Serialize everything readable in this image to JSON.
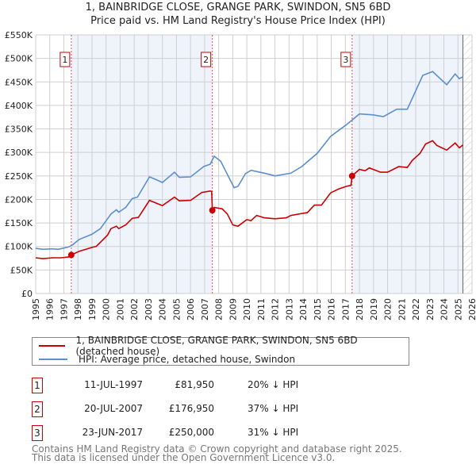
{
  "title_line1": "1, BAINBRIDGE CLOSE, GRANGE PARK, SWINDON, SN5 6BD",
  "title_line2": "Price paid vs. HM Land Registry's House Price Index (HPI)",
  "colors": {
    "price": "#cc0000",
    "hpi": "#5b8fd0",
    "shade": "#eef3fc"
  },
  "chart_data": {
    "type": "line",
    "title": "Price paid vs. HM Land Registry's House Price Index (HPI)",
    "xlim": [
      1995,
      2026
    ],
    "ylim": [
      0,
      550000
    ],
    "grid": true,
    "x_ticks": [
      "1995",
      "1996",
      "1997",
      "1998",
      "1999",
      "2000",
      "2001",
      "2002",
      "2003",
      "2004",
      "2005",
      "2006",
      "2007",
      "2008",
      "2009",
      "2010",
      "2011",
      "2012",
      "2013",
      "2014",
      "2015",
      "2016",
      "2017",
      "2018",
      "2019",
      "2020",
      "2021",
      "2022",
      "2023",
      "2024",
      "2025",
      "2026"
    ],
    "y_ticks": [
      {
        "v": 0,
        "label": "£0"
      },
      {
        "v": 50000,
        "label": "£50K"
      },
      {
        "v": 100000,
        "label": "£100K"
      },
      {
        "v": 150000,
        "label": "£150K"
      },
      {
        "v": 200000,
        "label": "£200K"
      },
      {
        "v": 250000,
        "label": "£250K"
      },
      {
        "v": 300000,
        "label": "£300K"
      },
      {
        "v": 350000,
        "label": "£350K"
      },
      {
        "v": 400000,
        "label": "£400K"
      },
      {
        "v": 450000,
        "label": "£450K"
      },
      {
        "v": 500000,
        "label": "£500K"
      },
      {
        "v": 550000,
        "label": "£550K"
      }
    ],
    "shaded_ranges": [
      [
        1997.53,
        2007.55
      ],
      [
        2017.48,
        2025.35
      ]
    ],
    "hatched_from": 2025.35,
    "series": [
      {
        "name": "1, BAINBRIDGE CLOSE, GRANGE PARK, SWINDON, SN5 6BD (detached house)",
        "key": "price",
        "points": [
          [
            1995,
            76
          ],
          [
            1995.5,
            74
          ],
          [
            1996.2,
            76
          ],
          [
            1996.8,
            76
          ],
          [
            1997.4,
            78
          ],
          [
            1997.53,
            82
          ],
          [
            1998.1,
            90
          ],
          [
            1999,
            98
          ],
          [
            1999.3,
            100
          ],
          [
            2000.1,
            124
          ],
          [
            2000.35,
            138
          ],
          [
            2000.73,
            143
          ],
          [
            2000.9,
            138
          ],
          [
            2001.4,
            146
          ],
          [
            2001.86,
            160
          ],
          [
            2002.3,
            162
          ],
          [
            2003.08,
            198
          ],
          [
            2003.5,
            193
          ],
          [
            2004,
            187
          ],
          [
            2004.86,
            205
          ],
          [
            2005.2,
            197
          ],
          [
            2006,
            198
          ],
          [
            2006.8,
            215
          ],
          [
            2007.4,
            218
          ],
          [
            2007.5,
            217
          ],
          [
            2007.55,
            177
          ],
          [
            2007.68,
            183
          ],
          [
            2008.25,
            180
          ],
          [
            2008.62,
            169
          ],
          [
            2009,
            146
          ],
          [
            2009.37,
            143
          ],
          [
            2010,
            157
          ],
          [
            2010.3,
            155
          ],
          [
            2010.7,
            166
          ],
          [
            2011.25,
            161
          ],
          [
            2012,
            159
          ],
          [
            2012.8,
            161
          ],
          [
            2013.13,
            166
          ],
          [
            2013.9,
            170
          ],
          [
            2014.3,
            172
          ],
          [
            2014.8,
            188
          ],
          [
            2015.3,
            188
          ],
          [
            2015.95,
            214
          ],
          [
            2016.5,
            222
          ],
          [
            2017.08,
            228
          ],
          [
            2017.4,
            230
          ],
          [
            2017.48,
            250
          ],
          [
            2018,
            264
          ],
          [
            2018.4,
            261
          ],
          [
            2018.7,
            267
          ],
          [
            2019.5,
            258
          ],
          [
            2020,
            258
          ],
          [
            2020.8,
            270
          ],
          [
            2021.4,
            268
          ],
          [
            2021.75,
            283
          ],
          [
            2022.3,
            298
          ],
          [
            2022.7,
            318
          ],
          [
            2023.2,
            325
          ],
          [
            2023.5,
            315
          ],
          [
            2024.2,
            305
          ],
          [
            2024.8,
            320
          ],
          [
            2025.1,
            310
          ],
          [
            2025.35,
            316
          ]
        ]
      },
      {
        "name": "HPI: Average price, detached house, Swindon",
        "key": "hpi",
        "points": [
          [
            1995,
            96
          ],
          [
            1995.5,
            94
          ],
          [
            1996.2,
            95
          ],
          [
            1996.6,
            94
          ],
          [
            1997.35,
            99
          ],
          [
            1997.6,
            103
          ],
          [
            1998.1,
            115
          ],
          [
            1999,
            126
          ],
          [
            1999.6,
            138
          ],
          [
            2000.35,
            169
          ],
          [
            2000.73,
            178
          ],
          [
            2000.9,
            173
          ],
          [
            2001.4,
            183
          ],
          [
            2001.86,
            202
          ],
          [
            2002.23,
            205
          ],
          [
            2003.08,
            248
          ],
          [
            2003.5,
            243
          ],
          [
            2004,
            236
          ],
          [
            2004.86,
            258
          ],
          [
            2005.2,
            247
          ],
          [
            2006,
            248
          ],
          [
            2006.93,
            270
          ],
          [
            2007.4,
            275
          ],
          [
            2007.68,
            292
          ],
          [
            2008.15,
            281
          ],
          [
            2008.62,
            253
          ],
          [
            2009.1,
            225
          ],
          [
            2009.37,
            228
          ],
          [
            2009.9,
            255
          ],
          [
            2010.3,
            262
          ],
          [
            2011.25,
            256
          ],
          [
            2012,
            250
          ],
          [
            2013.13,
            256
          ],
          [
            2013.9,
            270
          ],
          [
            2015,
            298
          ],
          [
            2015.95,
            334
          ],
          [
            2017.08,
            359
          ],
          [
            2018,
            382
          ],
          [
            2018.96,
            380
          ],
          [
            2019.7,
            376
          ],
          [
            2020.65,
            392
          ],
          [
            2021.4,
            392
          ],
          [
            2022.5,
            464
          ],
          [
            2023.2,
            472
          ],
          [
            2024.2,
            444
          ],
          [
            2024.8,
            467
          ],
          [
            2025.1,
            457
          ],
          [
            2025.35,
            461
          ]
        ]
      }
    ],
    "sales": [
      {
        "label": "1",
        "x": 1997.53,
        "y": 81950
      },
      {
        "label": "2",
        "x": 2007.55,
        "y": 176950
      },
      {
        "label": "3",
        "x": 2017.48,
        "y": 250000
      }
    ]
  },
  "legend": {
    "price_label": "1, BAINBRIDGE CLOSE, GRANGE PARK, SWINDON, SN5 6BD (detached house)",
    "hpi_label": "HPI: Average price, detached house, Swindon"
  },
  "transactions": [
    {
      "num": "1",
      "date": "11-JUL-1997",
      "price": "£81,950",
      "hpi": "20% ↓ HPI"
    },
    {
      "num": "2",
      "date": "20-JUL-2007",
      "price": "£176,950",
      "hpi": "37% ↓ HPI"
    },
    {
      "num": "3",
      "date": "23-JUN-2017",
      "price": "£250,000",
      "hpi": "31% ↓ HPI"
    }
  ],
  "footer": {
    "line1": "Contains HM Land Registry data © Crown copyright and database right 2025.",
    "line2": "This data is licensed under the Open Government Licence v3.0."
  }
}
